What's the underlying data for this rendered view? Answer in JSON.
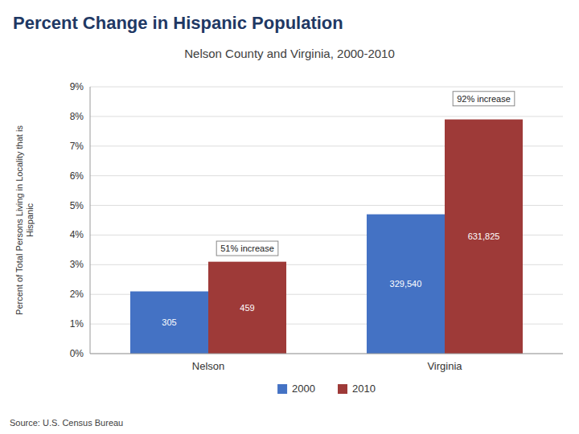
{
  "chart_data": {
    "type": "bar",
    "title": "Percent Change in Hispanic Population",
    "subtitle": "Nelson County and Virginia, 2000-2010",
    "categories": [
      "Nelson",
      "Virginia"
    ],
    "series": [
      {
        "name": "2000",
        "color": "#4472C4",
        "values": [
          2.1,
          4.7
        ],
        "count_labels": [
          "305",
          "329,540"
        ]
      },
      {
        "name": "2010",
        "color": "#9E3A38",
        "values": [
          3.1,
          7.9
        ],
        "count_labels": [
          "459",
          "631,825"
        ]
      }
    ],
    "annotations": [
      {
        "text": "51% increase",
        "category": "Nelson",
        "y": 3.55
      },
      {
        "text": "92% increase",
        "category": "Virginia",
        "y": 8.6
      }
    ],
    "ylabel": "Percent of Total Persons Living in Locality that is\nHispanic",
    "ylim": [
      0,
      9
    ],
    "yticks": [
      {
        "value": 0,
        "label": "0%"
      },
      {
        "value": 1,
        "label": "1%"
      },
      {
        "value": 2,
        "label": "2%"
      },
      {
        "value": 3,
        "label": "3%"
      },
      {
        "value": 4,
        "label": "4%"
      },
      {
        "value": 5,
        "label": "5%"
      },
      {
        "value": 6,
        "label": "6%"
      },
      {
        "value": 7,
        "label": "7%"
      },
      {
        "value": 8,
        "label": "8%"
      },
      {
        "value": 9,
        "label": "9%"
      }
    ],
    "grid": true,
    "legend": "bottom",
    "source": "Source: U.S. Census Bureau"
  }
}
